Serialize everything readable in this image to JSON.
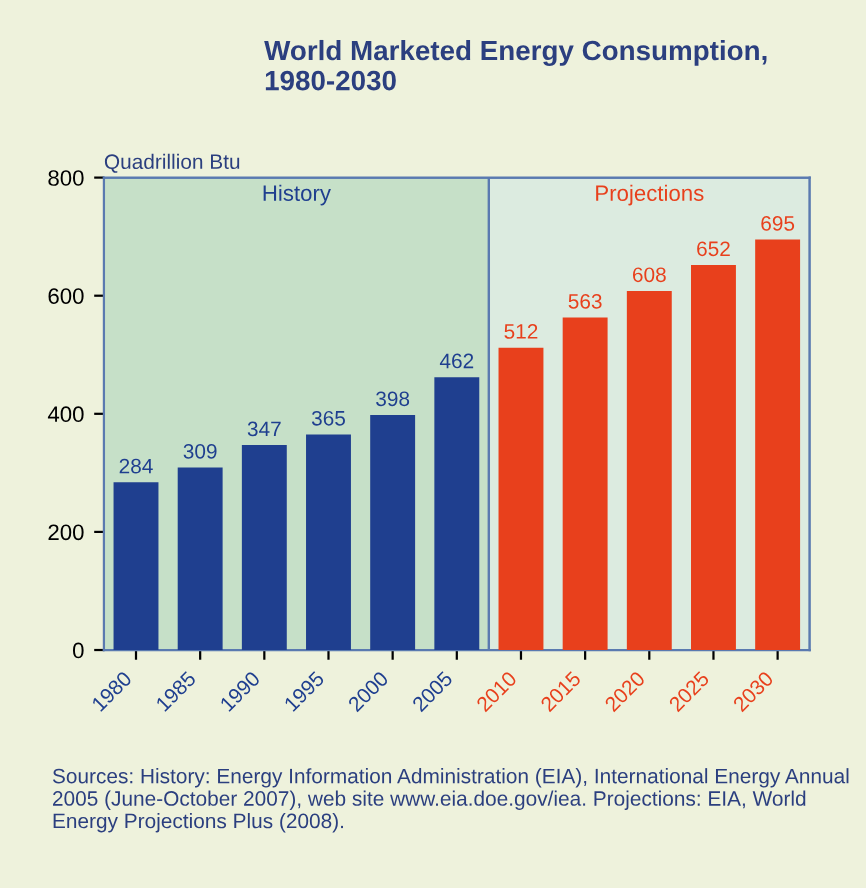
{
  "chart_data": {
    "type": "bar",
    "title": "World Marketed Energy Consumption,\n1980-2030",
    "ylabel": "Quadrillion Btu",
    "categories": [
      "1980",
      "1985",
      "1990",
      "1995",
      "2000",
      "2005",
      "2010",
      "2015",
      "2020",
      "2025",
      "2030"
    ],
    "values": [
      284,
      309,
      347,
      365,
      398,
      462,
      512,
      563,
      608,
      652,
      695
    ],
    "colors": [
      "#1f3f8f",
      "#1f3f8f",
      "#1f3f8f",
      "#1f3f8f",
      "#1f3f8f",
      "#1f3f8f",
      "#e8401c",
      "#e8401c",
      "#e8401c",
      "#e8401c",
      "#e8401c"
    ],
    "data_labels": true,
    "ylim": [
      0,
      800
    ],
    "yticks": [
      0,
      200,
      400,
      600,
      800
    ],
    "bands": [
      {
        "axis": "x",
        "from": "1980",
        "to": "2005",
        "label": "History",
        "color": "#c6e0c8"
      },
      {
        "axis": "x",
        "from": "2010",
        "to": "2030",
        "label": "Projections",
        "color": "#dcebe0"
      }
    ],
    "grid": false,
    "legend": false,
    "annotations": [
      "Sources: History: Energy Information Administration (EIA), International Energy Annual 2005 (June-October 2007), web site www.eia.doe.gov/iea. Projections: EIA, World Energy Projections Plus (2008)."
    ]
  }
}
